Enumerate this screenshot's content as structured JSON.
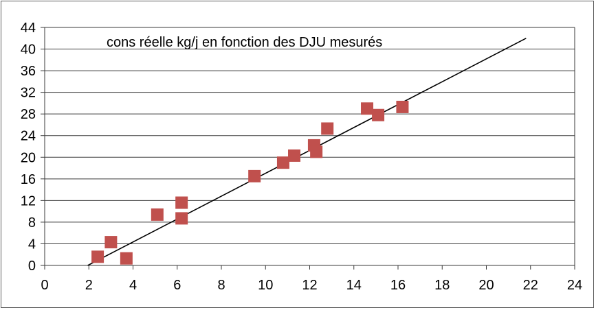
{
  "chart_data": {
    "type": "scatter",
    "title": "cons réelle kg/j en fonction des DJU mesurés",
    "xlabel": "",
    "ylabel": "",
    "xlim": [
      0,
      24
    ],
    "ylim": [
      0,
      44
    ],
    "xticks": [
      "0",
      "2",
      "4",
      "6",
      "8",
      "10",
      "12",
      "14",
      "16",
      "18",
      "20",
      "22",
      "24"
    ],
    "yticks": [
      "0",
      "4",
      "8",
      "12",
      "16",
      "20",
      "24",
      "28",
      "32",
      "36",
      "40",
      "44"
    ],
    "grid": "horizontal",
    "series": [
      {
        "marker": "square",
        "color": "#c0504d",
        "points": [
          {
            "x": 2.4,
            "y": 1.6
          },
          {
            "x": 3.0,
            "y": 4.3
          },
          {
            "x": 3.7,
            "y": 1.3
          },
          {
            "x": 5.1,
            "y": 9.4
          },
          {
            "x": 6.2,
            "y": 11.6
          },
          {
            "x": 6.2,
            "y": 8.7
          },
          {
            "x": 9.5,
            "y": 16.5
          },
          {
            "x": 10.8,
            "y": 19.0
          },
          {
            "x": 11.3,
            "y": 20.3
          },
          {
            "x": 12.2,
            "y": 22.2
          },
          {
            "x": 12.3,
            "y": 21.0
          },
          {
            "x": 12.8,
            "y": 25.3
          },
          {
            "x": 14.6,
            "y": 29.0
          },
          {
            "x": 15.1,
            "y": 27.8
          },
          {
            "x": 16.2,
            "y": 29.3
          }
        ]
      }
    ],
    "trendline": {
      "color": "#000000",
      "points": [
        {
          "x": 1.95,
          "y": 0
        },
        {
          "x": 21.8,
          "y": 42.0
        }
      ]
    }
  }
}
